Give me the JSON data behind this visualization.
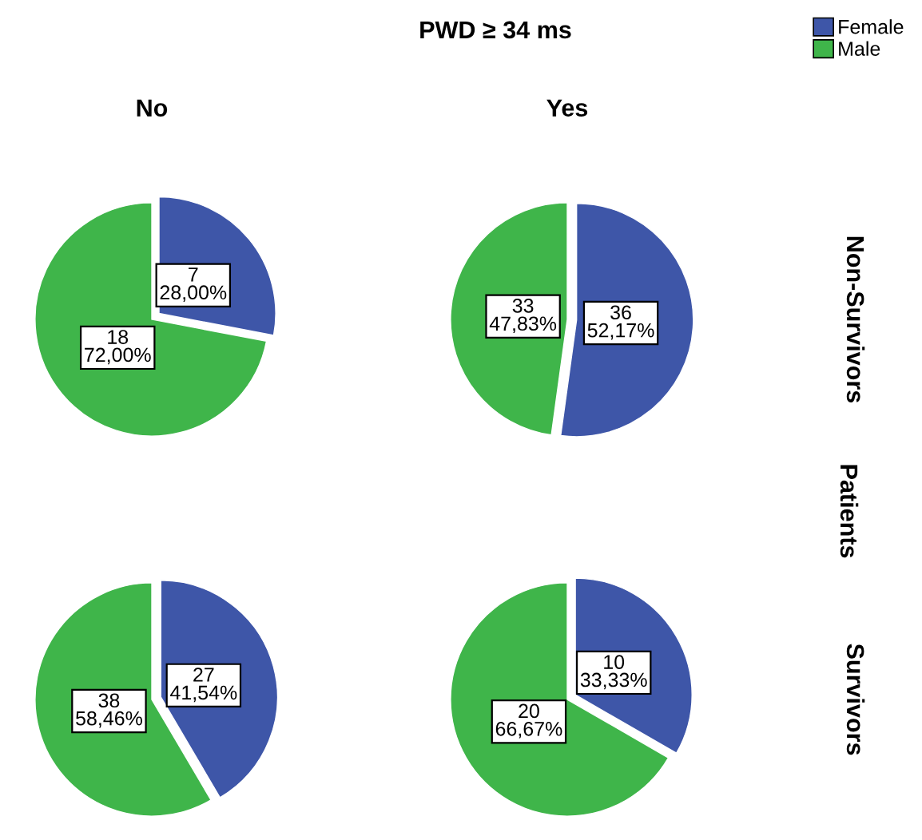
{
  "chart_data": [
    {
      "type": "pie",
      "title": "No",
      "annotations": [
        "PWD ≥ 34 ms",
        "Patients"
      ],
      "categories": [
        "Female",
        "Male"
      ],
      "values": [
        7,
        18
      ],
      "colors": [
        "#3e56a8",
        "#3fb54a"
      ],
      "value_labels": [
        "7\n28,00%",
        "18\n72,00%"
      ],
      "legend": "top right"
    },
    {
      "type": "pie",
      "title": "Yes",
      "ylabel": "Non-Survivors",
      "categories": [
        null,
        null
      ],
      "values": [
        36,
        33
      ],
      "colors": [
        "#3e56a8",
        "#3fb54a"
      ],
      "value_labels": [
        "36\n52,17%",
        "33\n47,83%"
      ],
      "legend": false
    },
    {
      "type": "pie",
      "categories": [
        null,
        null
      ],
      "values": [
        27,
        38
      ],
      "colors": [
        "#3e56a8",
        "#3fb54a"
      ],
      "value_labels": [
        "27\n41,54%",
        "38\n58,46%"
      ],
      "legend": false
    },
    {
      "type": "pie",
      "ylabel": "Survivors",
      "categories": [
        null,
        null
      ],
      "values": [
        10,
        20
      ],
      "colors": [
        "#3e56a8",
        "#3fb54a"
      ],
      "value_labels": [
        "10\n33,33%",
        "20\n66,67%"
      ],
      "legend": false
    }
  ]
}
